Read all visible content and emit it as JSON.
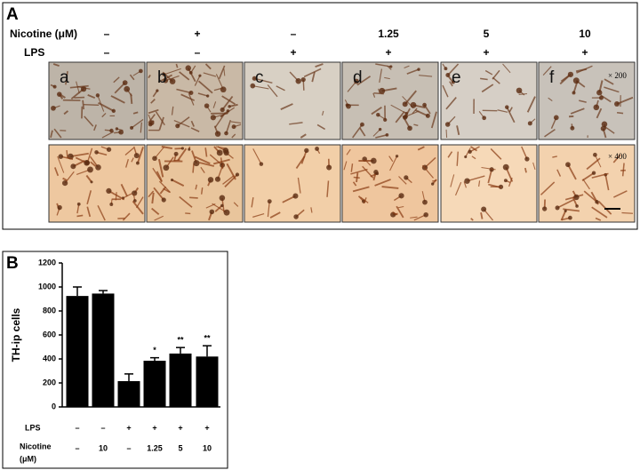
{
  "panel_a": {
    "label": "A",
    "row_labels": [
      "Nicotine (μM)",
      "LPS"
    ],
    "nicotine": [
      "–",
      "+",
      "–",
      "1.25",
      "5",
      "10"
    ],
    "lps": [
      "–",
      "–",
      "+",
      "+",
      "+",
      "+"
    ],
    "panels": [
      "a",
      "b",
      "c",
      "d",
      "e",
      "f"
    ],
    "magnifications": [
      "× 200",
      "× 400"
    ]
  },
  "panel_b": {
    "label": "B"
  },
  "chart_data": {
    "type": "bar",
    "y_label": "TH-ip cells",
    "category_rows": [
      {
        "label": [
          "LPS"
        ],
        "values": [
          "–",
          "–",
          "+",
          "+",
          "+",
          "+"
        ]
      },
      {
        "label": [
          "Nicotine",
          "(μM)"
        ],
        "values": [
          "–",
          "10",
          "–",
          "1.25",
          "5",
          "10"
        ]
      }
    ],
    "values": [
      925,
      945,
      215,
      385,
      445,
      420
    ],
    "errors": [
      75,
      25,
      60,
      25,
      50,
      90
    ],
    "annotations": [
      null,
      null,
      null,
      "*",
      "**",
      "**"
    ],
    "color": "#000000",
    "ylim": [
      0,
      1200
    ],
    "yticks": [
      0,
      200,
      400,
      600,
      800,
      1000,
      1200
    ]
  }
}
